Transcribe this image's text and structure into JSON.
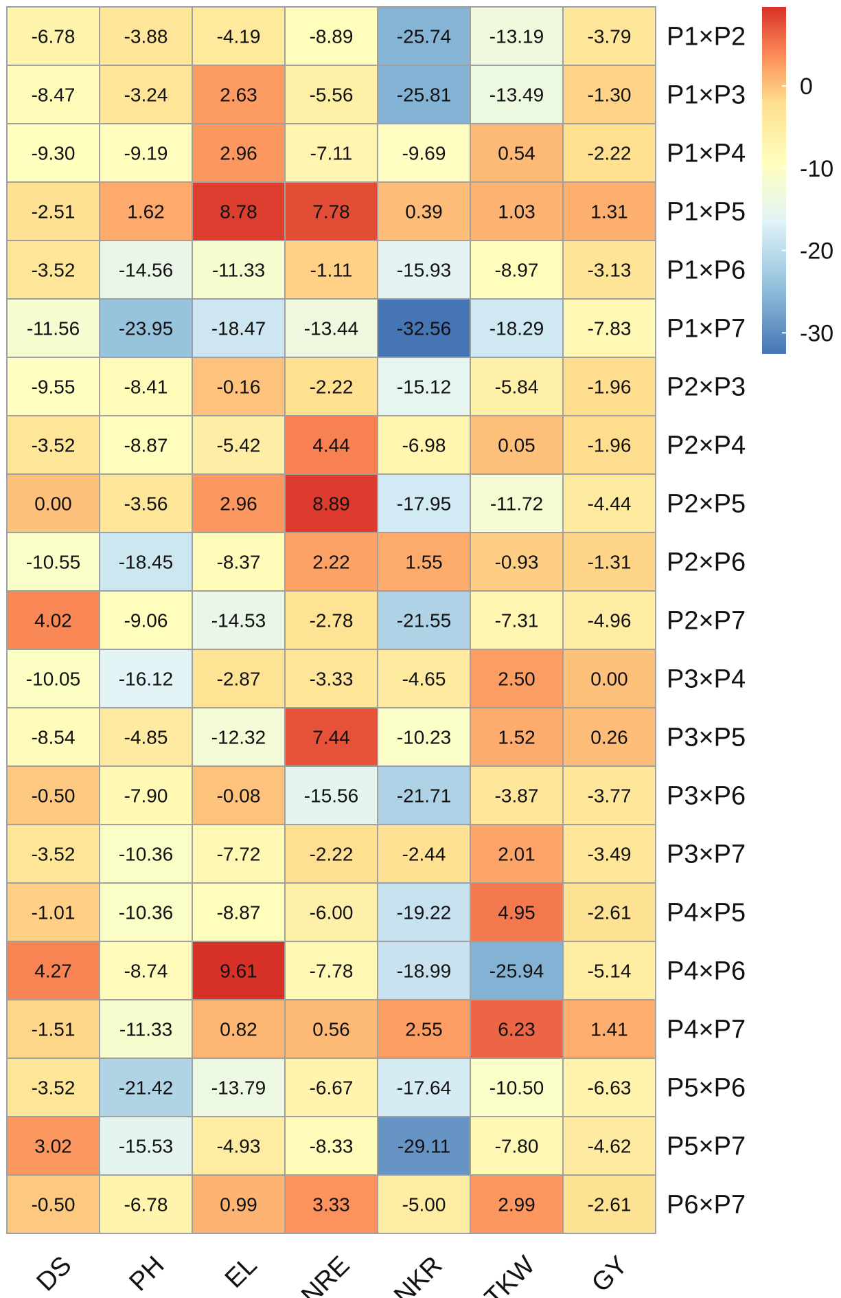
{
  "chart_data": {
    "type": "heatmap",
    "columns": [
      "DS",
      "PH",
      "EL",
      "NRE",
      "NKR",
      "TKW",
      "GY"
    ],
    "rows": [
      "P1×P2",
      "P1×P3",
      "P1×P4",
      "P1×P5",
      "P1×P6",
      "P1×P7",
      "P2×P3",
      "P2×P4",
      "P2×P5",
      "P2×P6",
      "P2×P7",
      "P3×P4",
      "P3×P5",
      "P3×P6",
      "P3×P7",
      "P4×P5",
      "P4×P6",
      "P4×P7",
      "P5×P6",
      "P5×P7",
      "P6×P7"
    ],
    "values": [
      [
        "-6.78",
        "-3.88",
        "-4.19",
        "-8.89",
        "-25.74",
        "-13.19",
        "-3.79"
      ],
      [
        "-8.47",
        "-3.24",
        "2.63",
        "-5.56",
        "-25.81",
        "-13.49",
        "-1.30"
      ],
      [
        "-9.30",
        "-9.19",
        "2.96",
        "-7.11",
        "-9.69",
        "0.54",
        "-2.22"
      ],
      [
        "-2.51",
        "1.62",
        "8.78",
        "7.78",
        "0.39",
        "1.03",
        "1.31"
      ],
      [
        "-3.52",
        "-14.56",
        "-11.33",
        "-1.11",
        "-15.93",
        "-8.97",
        "-3.13"
      ],
      [
        "-11.56",
        "-23.95",
        "-18.47",
        "-13.44",
        "-32.56",
        "-18.29",
        "-7.83"
      ],
      [
        "-9.55",
        "-8.41",
        "-0.16",
        "-2.22",
        "-15.12",
        "-5.84",
        "-1.96"
      ],
      [
        "-3.52",
        "-8.87",
        "-5.42",
        "4.44",
        "-6.98",
        "0.05",
        "-1.96"
      ],
      [
        "0.00",
        "-3.56",
        "2.96",
        "8.89",
        "-17.95",
        "-11.72",
        "-4.44"
      ],
      [
        "-10.55",
        "-18.45",
        "-8.37",
        "2.22",
        "1.55",
        "-0.93",
        "-1.31"
      ],
      [
        "4.02",
        "-9.06",
        "-14.53",
        "-2.78",
        "-21.55",
        "-7.31",
        "-4.96"
      ],
      [
        "-10.05",
        "-16.12",
        "-2.87",
        "-3.33",
        "-4.65",
        "2.50",
        "0.00"
      ],
      [
        "-8.54",
        "-4.85",
        "-12.32",
        "7.44",
        "-10.23",
        "1.52",
        "0.26"
      ],
      [
        "-0.50",
        "-7.90",
        "-0.08",
        "-15.56",
        "-21.71",
        "-3.87",
        "-3.77"
      ],
      [
        "-3.52",
        "-10.36",
        "-7.72",
        "-2.22",
        "-2.44",
        "2.01",
        "-3.49"
      ],
      [
        "-1.01",
        "-10.36",
        "-8.87",
        "-6.00",
        "-19.22",
        "4.95",
        "-2.61"
      ],
      [
        "4.27",
        "-8.74",
        "9.61",
        "-7.78",
        "-18.99",
        "-25.94",
        "-5.14"
      ],
      [
        "-1.51",
        "-11.33",
        "0.82",
        "0.56",
        "2.55",
        "6.23",
        "1.41"
      ],
      [
        "-3.52",
        "-21.42",
        "-13.79",
        "-6.67",
        "-17.64",
        "-10.50",
        "-6.63"
      ],
      [
        "3.02",
        "-15.53",
        "-4.93",
        "-8.33",
        "-29.11",
        "-7.80",
        "-4.62"
      ],
      [
        "-0.50",
        "-6.78",
        "0.99",
        "3.33",
        "-5.00",
        "2.99",
        "-2.61"
      ]
    ],
    "legend": {
      "ticks": [
        "0",
        "-10",
        "-20",
        "-30"
      ],
      "min": -32.56,
      "max": 9.61,
      "colors": [
        "#4575b4",
        "#91bfdb",
        "#e0f3f8",
        "#ffffbf",
        "#fee090",
        "#fc8d59",
        "#d73027"
      ]
    }
  }
}
